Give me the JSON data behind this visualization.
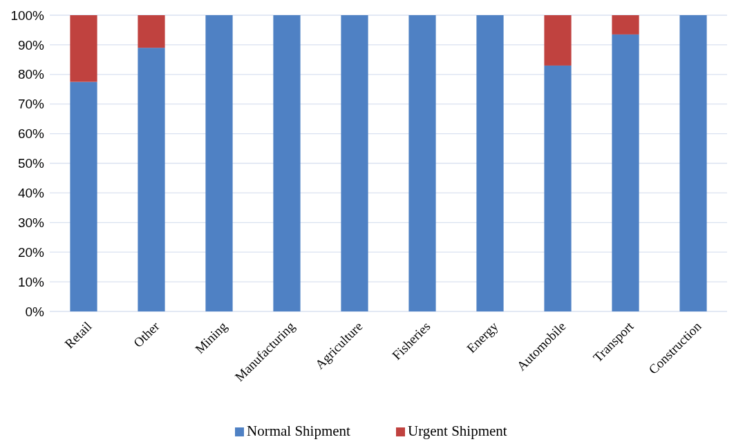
{
  "chart_data": {
    "type": "bar",
    "stacked": true,
    "categories": [
      "Retail",
      "Other",
      "Mining",
      "Manufacturing",
      "Agriculture",
      "Fisheries",
      "Energy",
      "Automobile",
      "Transport",
      "Construction"
    ],
    "series": [
      {
        "name": "Normal Shipment",
        "color": "#4f81c4",
        "values": [
          77.5,
          89,
          100,
          100,
          100,
          100,
          100,
          83,
          93.5,
          100
        ]
      },
      {
        "name": "Urgent Shipment",
        "color": "#c0423f",
        "values": [
          22.5,
          11,
          0,
          0,
          0,
          0,
          0,
          17,
          6.5,
          0
        ]
      }
    ],
    "ylim": [
      0,
      100
    ],
    "yticks": [
      {
        "value": 0,
        "label": "0%"
      },
      {
        "value": 10,
        "label": "10%"
      },
      {
        "value": 20,
        "label": "20%"
      },
      {
        "value": 30,
        "label": "30%"
      },
      {
        "value": 40,
        "label": "40%"
      },
      {
        "value": 50,
        "label": "50%"
      },
      {
        "value": 60,
        "label": "60%"
      },
      {
        "value": 70,
        "label": "70%"
      },
      {
        "value": 80,
        "label": "80%"
      },
      {
        "value": 90,
        "label": "90%"
      },
      {
        "value": 100,
        "label": "100%"
      }
    ],
    "grid": "y",
    "legend": "bottom"
  }
}
